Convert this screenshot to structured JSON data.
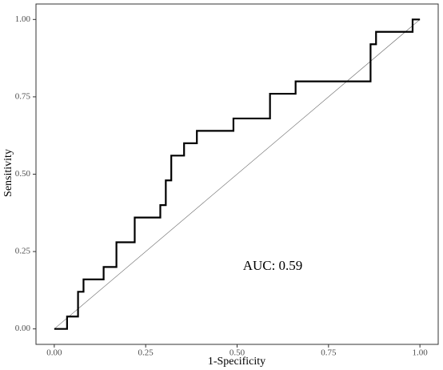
{
  "chart_data": {
    "type": "line",
    "xlabel": "1-Specificity",
    "ylabel": "Sensitivity",
    "annotation": "AUC: 0.59",
    "x": [
      0,
      0.035,
      0.035,
      0.065,
      0.065,
      0.08,
      0.08,
      0.135,
      0.135,
      0.17,
      0.17,
      0.22,
      0.22,
      0.29,
      0.29,
      0.305,
      0.305,
      0.32,
      0.32,
      0.355,
      0.355,
      0.39,
      0.39,
      0.49,
      0.49,
      0.59,
      0.59,
      0.66,
      0.66,
      0.865,
      0.865,
      0.88,
      0.88,
      0.98,
      0.98,
      1
    ],
    "values": [
      0,
      0,
      0.04,
      0.04,
      0.12,
      0.12,
      0.16,
      0.16,
      0.2,
      0.2,
      0.28,
      0.28,
      0.36,
      0.36,
      0.4,
      0.4,
      0.48,
      0.48,
      0.56,
      0.56,
      0.6,
      0.6,
      0.64,
      0.64,
      0.68,
      0.68,
      0.76,
      0.76,
      0.8,
      0.8,
      0.92,
      0.92,
      0.96,
      0.96,
      1,
      1
    ],
    "color": "#000000",
    "reference_line": true,
    "xlim": [
      -0.05,
      1.05
    ],
    "ylim": [
      -0.05,
      1.05
    ],
    "xticks": [
      {
        "value": 0,
        "label": "0.00"
      },
      {
        "value": 0.25,
        "label": "0.25"
      },
      {
        "value": 0.5,
        "label": "0.50"
      },
      {
        "value": 0.75,
        "label": "0.75"
      },
      {
        "value": 1,
        "label": "1.00"
      }
    ],
    "yticks": [
      {
        "value": 0,
        "label": "0.00"
      },
      {
        "value": 0.25,
        "label": "0.25"
      },
      {
        "value": 0.5,
        "label": "0.50"
      },
      {
        "value": 0.75,
        "label": "0.75"
      },
      {
        "value": 1,
        "label": "1.00"
      }
    ]
  }
}
